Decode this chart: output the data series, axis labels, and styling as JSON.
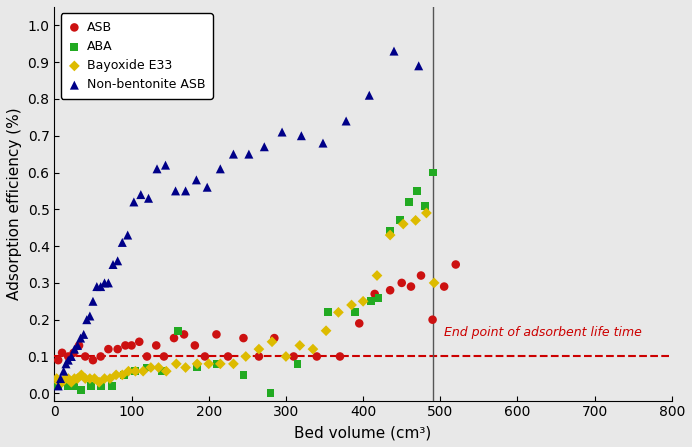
{
  "xlabel": "Bed volume (cm³)",
  "ylabel": "Adsorption efficiency (%)",
  "xlim": [
    0,
    800
  ],
  "ylim": [
    -0.02,
    1.05
  ],
  "yticks": [
    0.0,
    0.1,
    0.2,
    0.3,
    0.4,
    0.5,
    0.6,
    0.7,
    0.8,
    0.9,
    1.0
  ],
  "xticks": [
    0,
    100,
    200,
    300,
    400,
    500,
    600,
    700,
    800
  ],
  "vline_x": 490,
  "hline_y": 0.1,
  "hline_label": "End point of adsorbent life time",
  "ASB_x": [
    5,
    10,
    18,
    25,
    32,
    40,
    50,
    60,
    70,
    82,
    92,
    100,
    110,
    120,
    132,
    142,
    155,
    168,
    182,
    195,
    210,
    225,
    245,
    265,
    285,
    310,
    340,
    370,
    395,
    415,
    435,
    450,
    462,
    475,
    490,
    505,
    520
  ],
  "ASB_y": [
    0.09,
    0.11,
    0.1,
    0.11,
    0.13,
    0.1,
    0.09,
    0.1,
    0.12,
    0.12,
    0.13,
    0.13,
    0.14,
    0.1,
    0.13,
    0.1,
    0.15,
    0.16,
    0.13,
    0.1,
    0.16,
    0.1,
    0.15,
    0.1,
    0.15,
    0.1,
    0.1,
    0.1,
    0.19,
    0.27,
    0.28,
    0.3,
    0.29,
    0.32,
    0.2,
    0.29,
    0.35
  ],
  "ABA_x": [
    5,
    10,
    18,
    25,
    35,
    48,
    60,
    75,
    90,
    105,
    120,
    140,
    160,
    185,
    210,
    245,
    280,
    315,
    355,
    390,
    410,
    420,
    435,
    448,
    460,
    470,
    480,
    490
  ],
  "ABA_y": [
    0.02,
    0.03,
    0.02,
    0.02,
    0.01,
    0.02,
    0.02,
    0.02,
    0.05,
    0.06,
    0.07,
    0.06,
    0.17,
    0.07,
    0.08,
    0.05,
    0.0,
    0.08,
    0.22,
    0.22,
    0.25,
    0.26,
    0.44,
    0.47,
    0.52,
    0.55,
    0.51,
    0.6
  ],
  "Bayoxide_x": [
    3,
    6,
    10,
    14,
    18,
    22,
    26,
    30,
    35,
    40,
    46,
    52,
    58,
    65,
    72,
    80,
    88,
    96,
    105,
    115,
    125,
    135,
    145,
    158,
    170,
    185,
    200,
    215,
    232,
    248,
    265,
    282,
    300,
    318,
    335,
    352,
    368,
    385,
    400,
    418,
    435,
    452,
    468,
    482,
    492
  ],
  "Bayoxide_y": [
    0.04,
    0.03,
    0.03,
    0.04,
    0.04,
    0.03,
    0.04,
    0.04,
    0.05,
    0.04,
    0.04,
    0.04,
    0.03,
    0.04,
    0.04,
    0.05,
    0.05,
    0.06,
    0.06,
    0.06,
    0.07,
    0.07,
    0.06,
    0.08,
    0.07,
    0.08,
    0.08,
    0.08,
    0.08,
    0.1,
    0.12,
    0.14,
    0.1,
    0.13,
    0.12,
    0.17,
    0.22,
    0.24,
    0.25,
    0.32,
    0.43,
    0.46,
    0.47,
    0.49,
    0.3
  ],
  "NB_ASB_x": [
    5,
    8,
    12,
    15,
    18,
    22,
    26,
    30,
    34,
    38,
    42,
    46,
    50,
    55,
    60,
    65,
    70,
    76,
    82,
    88,
    95,
    103,
    112,
    122,
    133,
    144,
    157,
    170,
    184,
    198,
    215,
    232,
    252,
    272,
    295,
    320,
    348,
    378,
    408,
    440,
    472
  ],
  "NB_ASB_y": [
    0.02,
    0.04,
    0.06,
    0.08,
    0.09,
    0.1,
    0.12,
    0.13,
    0.15,
    0.16,
    0.2,
    0.21,
    0.25,
    0.29,
    0.29,
    0.3,
    0.3,
    0.35,
    0.36,
    0.41,
    0.43,
    0.52,
    0.54,
    0.53,
    0.61,
    0.62,
    0.55,
    0.55,
    0.58,
    0.56,
    0.61,
    0.65,
    0.65,
    0.67,
    0.71,
    0.7,
    0.68,
    0.74,
    0.81,
    0.93,
    0.89
  ],
  "ASB_color": "#cc1111",
  "ABA_color": "#22aa22",
  "Bayoxide_color": "#ddbb00",
  "NB_ASB_color": "#000088",
  "legend_fontsize": 9,
  "axis_fontsize": 11,
  "tick_fontsize": 10
}
